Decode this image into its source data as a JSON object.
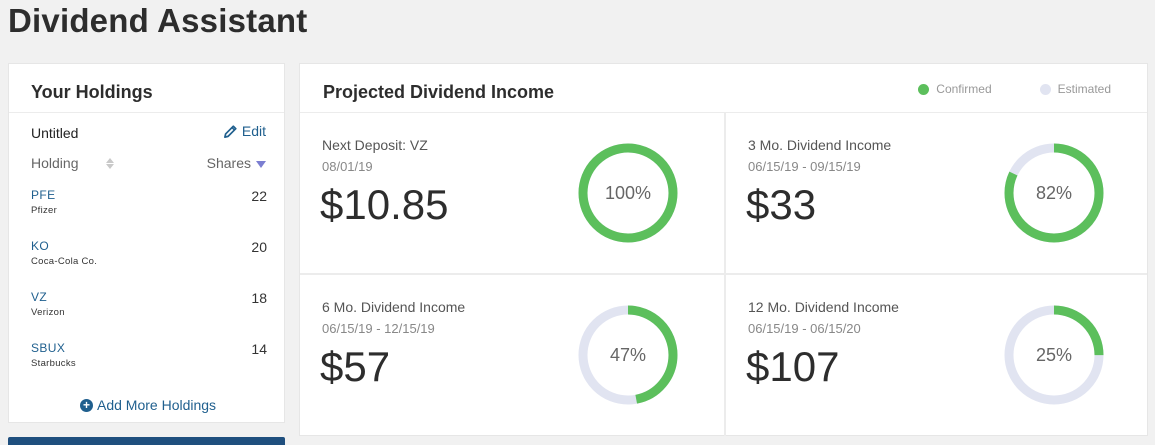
{
  "app": {
    "title": "Dividend Assistant"
  },
  "holdings": {
    "title": "Your Holdings",
    "portfolio_name": "Untitled",
    "edit_label": "Edit",
    "col_holding": "Holding",
    "col_shares": "Shares",
    "rows": [
      {
        "ticker": "PFE",
        "company": "Pfizer",
        "shares": "22"
      },
      {
        "ticker": "KO",
        "company": "Coca-Cola Co.",
        "shares": "20"
      },
      {
        "ticker": "VZ",
        "company": "Verizon",
        "shares": "18"
      },
      {
        "ticker": "SBUX",
        "company": "Starbucks",
        "shares": "14"
      }
    ],
    "add_more_label": "Add More Holdings"
  },
  "income": {
    "title": "Projected Dividend Income",
    "legend": [
      {
        "label": "Confirmed",
        "color": "#5cbf5c"
      },
      {
        "label": "Estimated",
        "color": "#e1e4f1"
      }
    ],
    "cards": [
      {
        "label": "Next Deposit: VZ",
        "range": "08/01/19",
        "amount": "$10.85",
        "percent": 100,
        "percent_label": "100%"
      },
      {
        "label": "3 Mo. Dividend Income",
        "range": "06/15/19 - 09/15/19",
        "amount": "$33",
        "percent": 82,
        "percent_label": "82%"
      },
      {
        "label": "6 Mo. Dividend Income",
        "range": "06/15/19 - 12/15/19",
        "amount": "$57",
        "percent": 47,
        "percent_label": "47%"
      },
      {
        "label": "12 Mo. Dividend Income",
        "range": "06/15/19 - 06/15/20",
        "amount": "$107",
        "percent": 25,
        "percent_label": "25%"
      }
    ]
  },
  "colors": {
    "confirmed": "#5cbf5c",
    "estimated": "#e1e4f1",
    "link": "#1f5f8e"
  }
}
